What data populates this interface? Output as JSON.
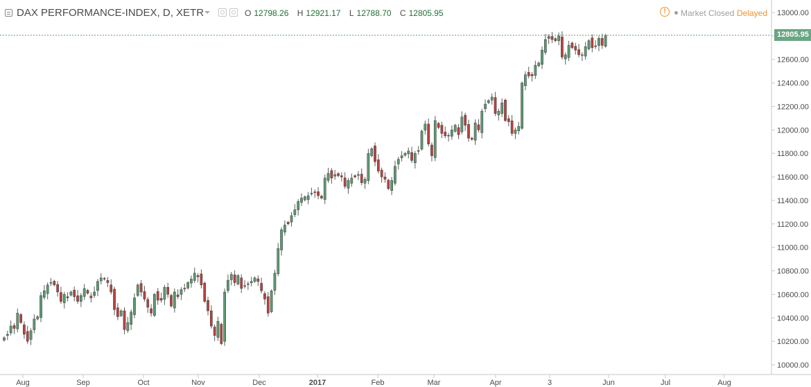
{
  "header": {
    "title": "DAX PERFORMANCE-INDEX, D, XETR",
    "open_label": "O",
    "open": "12798.26",
    "high_label": "H",
    "high": "12921.17",
    "low_label": "L",
    "low": "12788.70",
    "close_label": "C",
    "close": "12805.95",
    "warning_symbol": "!",
    "market_status": "Market Closed",
    "delay_status": "Delayed"
  },
  "last_price_label": "12805.95",
  "colors": {
    "up": "#5c9a72",
    "down": "#b8433f",
    "wick": "#5a5a5a",
    "last_price_tag": "#6ba583",
    "value": "#216e38",
    "delayed": "#f0932b"
  },
  "chart_data": {
    "type": "candlestick",
    "title": "DAX PERFORMANCE-INDEX, D, XETR",
    "ylim": [
      9950,
      13050
    ],
    "yticks": [
      "10000.00",
      "10200.00",
      "10400.00",
      "10600.00",
      "10800.00",
      "11000.00",
      "11200.00",
      "11400.00",
      "11600.00",
      "11800.00",
      "12000.00",
      "12200.00",
      "12400.00",
      "12600.00",
      "12800.00",
      "13000.00"
    ],
    "xticks": [
      "Aug",
      "Sep",
      "Oct",
      "Nov",
      "Dec",
      "2017",
      "Feb",
      "Mar",
      "Apr",
      "3",
      "Jun",
      "Jul",
      "Aug"
    ],
    "last_price": 12805.95,
    "grid": false,
    "close": [
      10230,
      10260,
      10330,
      10310,
      10440,
      10360,
      10260,
      10200,
      10290,
      10390,
      10410,
      10590,
      10630,
      10680,
      10700,
      10680,
      10620,
      10540,
      10600,
      10570,
      10620,
      10580,
      10540,
      10590,
      10650,
      10610,
      10570,
      10620,
      10710,
      10740,
      10730,
      10700,
      10620,
      10470,
      10410,
      10460,
      10300,
      10360,
      10450,
      10570,
      10680,
      10620,
      10560,
      10490,
      10440,
      10600,
      10550,
      10550,
      10660,
      10600,
      10500,
      10620,
      10580,
      10640,
      10650,
      10700,
      10730,
      10780,
      10750,
      10680,
      10540,
      10460,
      10330,
      10250,
      10370,
      10180,
      10620,
      10720,
      10770,
      10700,
      10760,
      10650,
      10670,
      10690,
      10710,
      10740,
      10710,
      10630,
      10560,
      10440,
      10630,
      10780,
      10990,
      11150,
      11190,
      11200,
      11270,
      11320,
      11390,
      11420,
      11430,
      11440,
      11460,
      11470,
      11440,
      11420,
      11590,
      11630,
      11590,
      11620,
      11610,
      11600,
      11520,
      11570,
      11590,
      11600,
      11620,
      11550,
      11580,
      11800,
      11840,
      11730,
      11650,
      11600,
      11580,
      11500,
      11570,
      11690,
      11750,
      11780,
      11800,
      11820,
      11740,
      11800,
      11820,
      11990,
      12050,
      11880,
      11780,
      12080,
      12020,
      11970,
      11950,
      11950,
      12000,
      12040,
      11960,
      12110,
      12040,
      11930,
      11920,
      12060,
      12000,
      12160,
      12220,
      12250,
      12280,
      12140,
      12160,
      12230,
      12080,
      12070,
      11970,
      12000,
      12030,
      12400,
      12470,
      12460,
      12460,
      12550,
      12570,
      12680,
      12770,
      12780,
      12770,
      12760,
      12800,
      12620,
      12640,
      12720,
      12700,
      12680,
      12640,
      12640,
      12710,
      12760,
      12700,
      12710,
      12780,
      12720,
      12805.95
    ]
  }
}
